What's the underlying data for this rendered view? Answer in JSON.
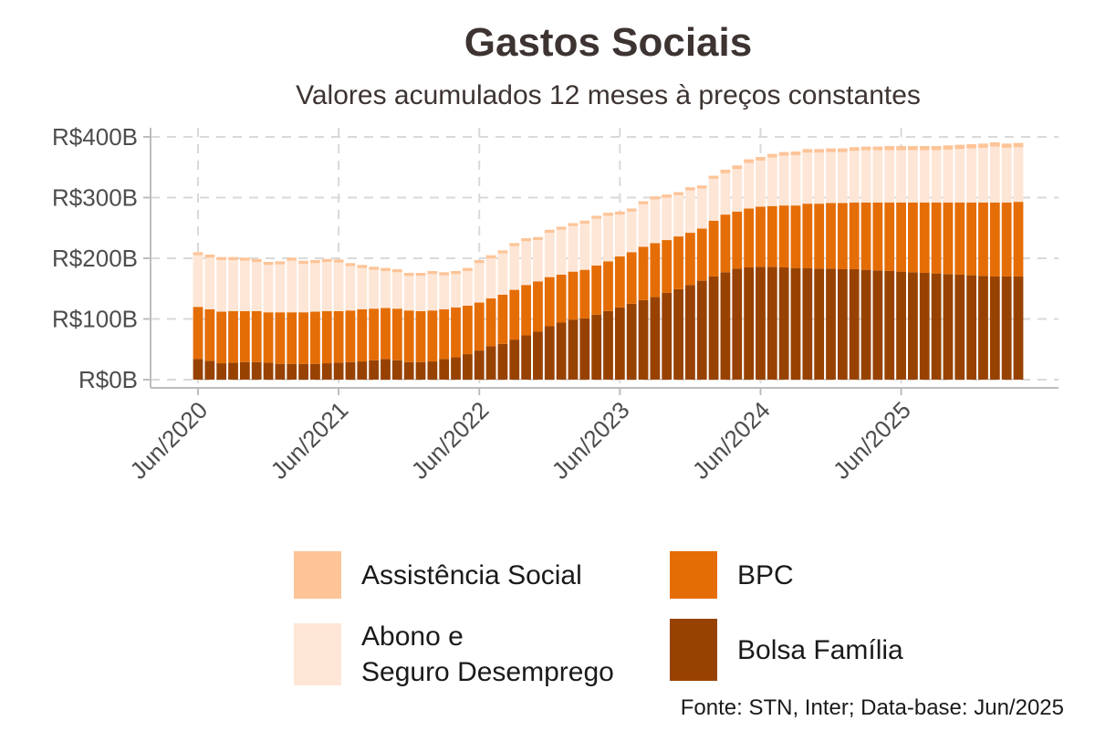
{
  "title": "Gastos Sociais",
  "subtitle": "Valores acumulados 12 meses à preços constantes",
  "source": "Fonte: STN, Inter; Data-base: Jun/2025",
  "colors": {
    "assistencia": "#fdc498",
    "abono": "#fee6d6",
    "bpc": "#e56d06",
    "bolsa": "#984202",
    "grid": "#d9d9d9",
    "axis": "#bdbdbd"
  },
  "legend": [
    {
      "key": "assistencia",
      "label_lines": [
        "Assistência Social"
      ]
    },
    {
      "key": "bpc",
      "label_lines": [
        "BPC"
      ]
    },
    {
      "key": "abono",
      "label_lines": [
        "Abono e",
        "Seguro Desemprego"
      ]
    },
    {
      "key": "bolsa",
      "label_lines": [
        "Bolsa Família"
      ]
    }
  ],
  "chart_data": {
    "type": "bar",
    "stacked": true,
    "x_start": "Jun/2020",
    "x_end": "Jun/2025",
    "x_tick_labels": [
      "Jun/2020",
      "Jun/2021",
      "Jun/2022",
      "Jun/2023",
      "Jun/2024",
      "Jun/2025"
    ],
    "y_tick_labels": [
      "R$0B",
      "R$100B",
      "R$200B",
      "R$300B",
      "R$400B"
    ],
    "y_ticks": [
      0,
      100,
      200,
      300,
      400
    ],
    "ylim": [
      0,
      400
    ],
    "grid": true,
    "series": [
      {
        "key": "bolsa",
        "name": "Bolsa Família",
        "values": [
          34,
          31,
          27,
          28,
          29,
          29,
          28,
          26,
          26,
          26,
          26,
          27,
          28,
          29,
          30,
          32,
          34,
          32,
          29,
          29,
          30,
          34,
          37,
          42,
          48,
          55,
          59,
          66,
          73,
          79,
          88,
          94,
          99,
          101,
          107,
          113,
          119,
          125,
          131,
          136,
          143,
          149,
          156,
          163,
          170,
          177,
          183,
          185,
          186,
          186,
          185,
          184,
          184,
          183,
          183,
          182,
          182,
          181,
          180,
          179,
          178,
          177,
          176,
          175,
          174,
          173,
          172,
          171,
          170,
          170,
          170
        ]
      },
      {
        "key": "bpc",
        "name": "BPC",
        "values": [
          86,
          85,
          85,
          85,
          84,
          84,
          83,
          85,
          85,
          85,
          86,
          86,
          85,
          85,
          86,
          85,
          84,
          85,
          85,
          84,
          84,
          82,
          82,
          80,
          79,
          79,
          81,
          82,
          83,
          83,
          81,
          79,
          79,
          80,
          81,
          82,
          84,
          85,
          88,
          89,
          87,
          87,
          86,
          86,
          92,
          95,
          94,
          97,
          99,
          100,
          102,
          103,
          106,
          107,
          108,
          109,
          110,
          111,
          112,
          113,
          114,
          115,
          116,
          117,
          118,
          119,
          120,
          121,
          122,
          122,
          123
        ]
      },
      {
        "key": "abono",
        "name": "Abono e Seguro Desemprego",
        "values": [
          85,
          85,
          85,
          84,
          83,
          81,
          78,
          79,
          85,
          80,
          80,
          81,
          80,
          73,
          68,
          64,
          61,
          60,
          57,
          58,
          60,
          56,
          55,
          57,
          65,
          66,
          68,
          72,
          72,
          68,
          73,
          74,
          75,
          76,
          77,
          75,
          69,
          67,
          70,
          72,
          70,
          68,
          70,
          66,
          69,
          68,
          70,
          75,
          76,
          80,
          82,
          83,
          84,
          84,
          84,
          84,
          85,
          86,
          86,
          86,
          86,
          86,
          86,
          86,
          87,
          88,
          89,
          90,
          92,
          90,
          90
        ]
      },
      {
        "key": "assistencia",
        "name": "Assistência Social",
        "values": [
          5,
          5,
          5,
          5,
          5,
          5,
          5,
          5,
          5,
          5,
          5,
          5,
          5,
          5,
          5,
          5,
          5,
          5,
          5,
          5,
          5,
          5,
          5,
          5,
          5,
          5,
          5,
          5,
          5,
          5,
          5,
          5,
          5,
          5,
          5,
          5,
          5,
          5,
          5,
          5,
          5,
          5,
          5,
          5,
          5,
          6,
          6,
          6,
          6,
          6,
          6,
          6,
          6,
          6,
          6,
          6,
          6,
          6,
          6,
          7,
          7,
          7,
          7,
          7,
          7,
          7,
          7,
          7,
          7,
          7,
          7
        ]
      }
    ]
  }
}
